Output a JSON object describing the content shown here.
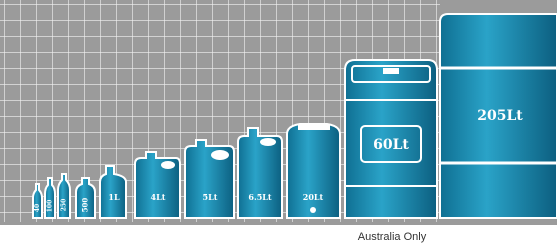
{
  "containers": [
    {
      "label": "40"
    },
    {
      "label": "100"
    },
    {
      "label": "250"
    },
    {
      "label": "500"
    },
    {
      "label": "1L"
    },
    {
      "label": "4Lt"
    },
    {
      "label": "5Lt"
    },
    {
      "label": "6.5Lt"
    },
    {
      "label": "20Lt"
    },
    {
      "label": "60Lt"
    },
    {
      "label": "205Lt"
    }
  ],
  "footnote": "Australia Only"
}
